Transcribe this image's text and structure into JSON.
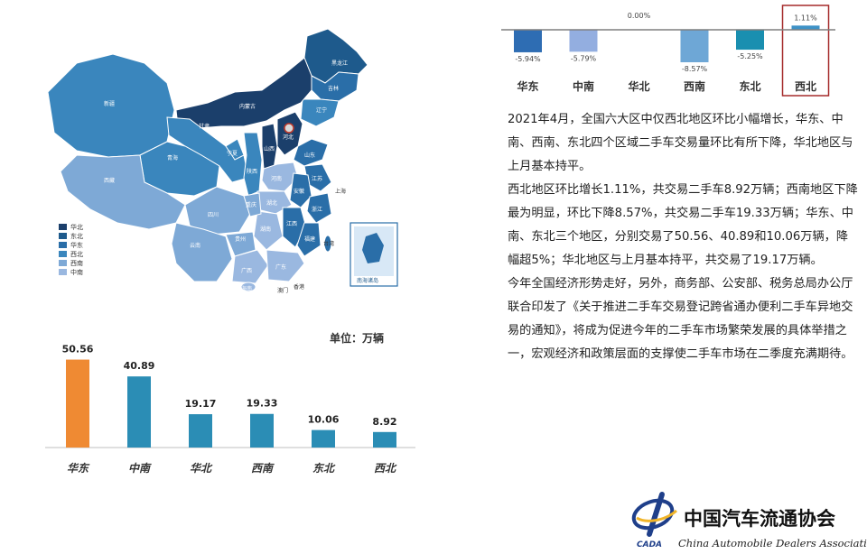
{
  "map": {
    "legend": [
      "华北",
      "东北",
      "华东",
      "西北",
      "西南",
      "中南"
    ],
    "province_labels": [
      "黑龙江",
      "吉林",
      "辽宁",
      "新疆",
      "内蒙古",
      "甘肃",
      "青海",
      "西藏",
      "四川",
      "云南",
      "贵州",
      "广西",
      "广东",
      "湖南",
      "湖北",
      "河南",
      "山东",
      "江苏",
      "安徽",
      "浙江",
      "江西",
      "福建",
      "海南",
      "台湾",
      "河北",
      "山西",
      "陕西",
      "宁夏",
      "重庆",
      "上海",
      "香港",
      "澳门"
    ],
    "inset_label": "南海诸岛",
    "colors": {
      "华北": "#1b3f6b",
      "东北": "#1e5a8c",
      "华东": "#2a6ea8",
      "西北": "#3a86bd",
      "西南": "#7ea9d6",
      "中南": "#9ab8e0"
    }
  },
  "bar_chart": {
    "unit_label": "单位：万辆",
    "categories": [
      "华东",
      "中南",
      "华北",
      "西南",
      "东北",
      "西北"
    ],
    "values_text": [
      "50.56",
      "40.89",
      "19.17",
      "19.33",
      "10.06",
      "8.92"
    ],
    "colors": {
      "highlight": "#ef8a33",
      "normal": "#2b8db5"
    }
  },
  "change_chart": {
    "categories": [
      "华东",
      "中南",
      "华北",
      "西南",
      "东北",
      "西北"
    ],
    "values_text": [
      "-5.94%",
      "-5.79%",
      "0.00%",
      "-8.57%",
      "-5.25%",
      "1.11%"
    ],
    "highlight_category": "西北",
    "colors": [
      "#2e6db3",
      "#93aee0",
      "#2e6db3",
      "#6ea7d6",
      "#1a8fb0",
      "#3e92c7"
    ]
  },
  "chart_data": [
    {
      "type": "bar",
      "categories": [
        "华东",
        "中南",
        "华北",
        "西南",
        "东北",
        "西北"
      ],
      "values": [
        50.56,
        40.89,
        19.17,
        19.33,
        10.06,
        8.92
      ],
      "ylabel": "单位：万辆",
      "ylim": [
        0,
        55
      ]
    },
    {
      "type": "bar",
      "categories": [
        "华东",
        "中南",
        "华北",
        "西南",
        "东北",
        "西北"
      ],
      "values": [
        -5.94,
        -5.79,
        0.0,
        -8.57,
        -5.25,
        1.11
      ],
      "ylim": [
        -10,
        2
      ]
    }
  ],
  "text": {
    "p1": "2021年4月，全国六大区中仅西北地区环比小幅增长，华东、中南、西南、东北四个区域二手车交易量环比有所下降，华北地区与上月基本持平。",
    "p2": "西北地区环比增长1.11%，共交易二手车8.92万辆；西南地区下降最为明显，环比下降8.57%，共交易二手车19.33万辆；华东、中南、东北三个地区，分别交易了50.56、40.89和10.06万辆，降幅超5%；华北地区与上月基本持平，共交易了19.17万辆。",
    "p3": "今年全国经济形势走好，另外，商务部、公安部、税务总局办公厅联合印发了《关于推进二手车交易登记跨省通办便利二手车异地交易的通知》，将成为促进今年的二手车市场繁荣发展的具体举措之一，宏观经济和政策层面的支撑使二手车市场在二季度充满期待。"
  },
  "logo": {
    "cn": "中国汽车流通协会",
    "en": "China Automobile Dealers Association",
    "abbr": "CADA"
  }
}
